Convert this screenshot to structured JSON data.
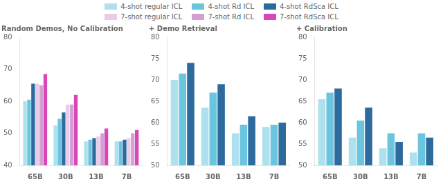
{
  "chart_data": [
    {
      "type": "bar",
      "title": "Random Demos, No Calibration",
      "categories": [
        "65B",
        "30B",
        "13B",
        "7B"
      ],
      "series": [
        {
          "name": "4-shot regular ICL",
          "color": "#aee0ee",
          "values": [
            60.0,
            52.5,
            47.5,
            47.5
          ]
        },
        {
          "name": "4-shot Rd ICL",
          "color": "#6cc5de",
          "values": [
            60.5,
            54.5,
            48.0,
            47.5
          ]
        },
        {
          "name": "4-shot RdSca ICL",
          "color": "#2d6b9e",
          "values": [
            65.5,
            56.5,
            48.5,
            48.0
          ]
        },
        {
          "name": "7-shot regular ICL",
          "color": "#e8cce8",
          "values": [
            65.5,
            59.0,
            49.0,
            48.5
          ]
        },
        {
          "name": "7-shot Rd ICL",
          "color": "#d4a0d4",
          "values": [
            65.0,
            59.0,
            50.0,
            50.0
          ]
        },
        {
          "name": "7-shot RdSca ICL",
          "color": "#d946b8",
          "values": [
            68.5,
            62.0,
            51.5,
            51.0
          ]
        }
      ],
      "ylim": [
        40,
        80
      ],
      "yticks": [
        40,
        50,
        60,
        70,
        80
      ],
      "grid": false,
      "legend": "top"
    },
    {
      "type": "bar",
      "title": "+ Demo Retrieval",
      "categories": [
        "65B",
        "30B",
        "13B",
        "7B"
      ],
      "series": [
        {
          "name": "4-shot regular ICL",
          "color": "#aee0ee",
          "values": [
            70.0,
            63.5,
            57.5,
            59.0
          ]
        },
        {
          "name": "4-shot Rd ICL",
          "color": "#6cc5de",
          "values": [
            71.5,
            67.0,
            59.5,
            59.5
          ]
        },
        {
          "name": "4-shot RdSca ICL",
          "color": "#2d6b9e",
          "values": [
            74.0,
            69.0,
            61.5,
            60.0
          ]
        }
      ],
      "ylim": [
        50,
        80
      ],
      "yticks": [
        50,
        55,
        60,
        65,
        70,
        75,
        80
      ],
      "grid": false
    },
    {
      "type": "bar",
      "title": "+ Calibration",
      "categories": [
        "65B",
        "30B",
        "13B",
        "7B"
      ],
      "series": [
        {
          "name": "4-shot regular ICL",
          "color": "#aee0ee",
          "values": [
            65.5,
            56.5,
            54.0,
            53.0
          ]
        },
        {
          "name": "4-shot Rd ICL",
          "color": "#6cc5de",
          "values": [
            67.0,
            60.5,
            57.5,
            57.5
          ]
        },
        {
          "name": "4-shot RdSca ICL",
          "color": "#2d6b9e",
          "values": [
            68.0,
            63.5,
            55.5,
            56.5
          ]
        }
      ],
      "ylim": [
        50,
        80
      ],
      "yticks": [
        50,
        55,
        60,
        65,
        70,
        75,
        80
      ],
      "grid": false
    }
  ]
}
